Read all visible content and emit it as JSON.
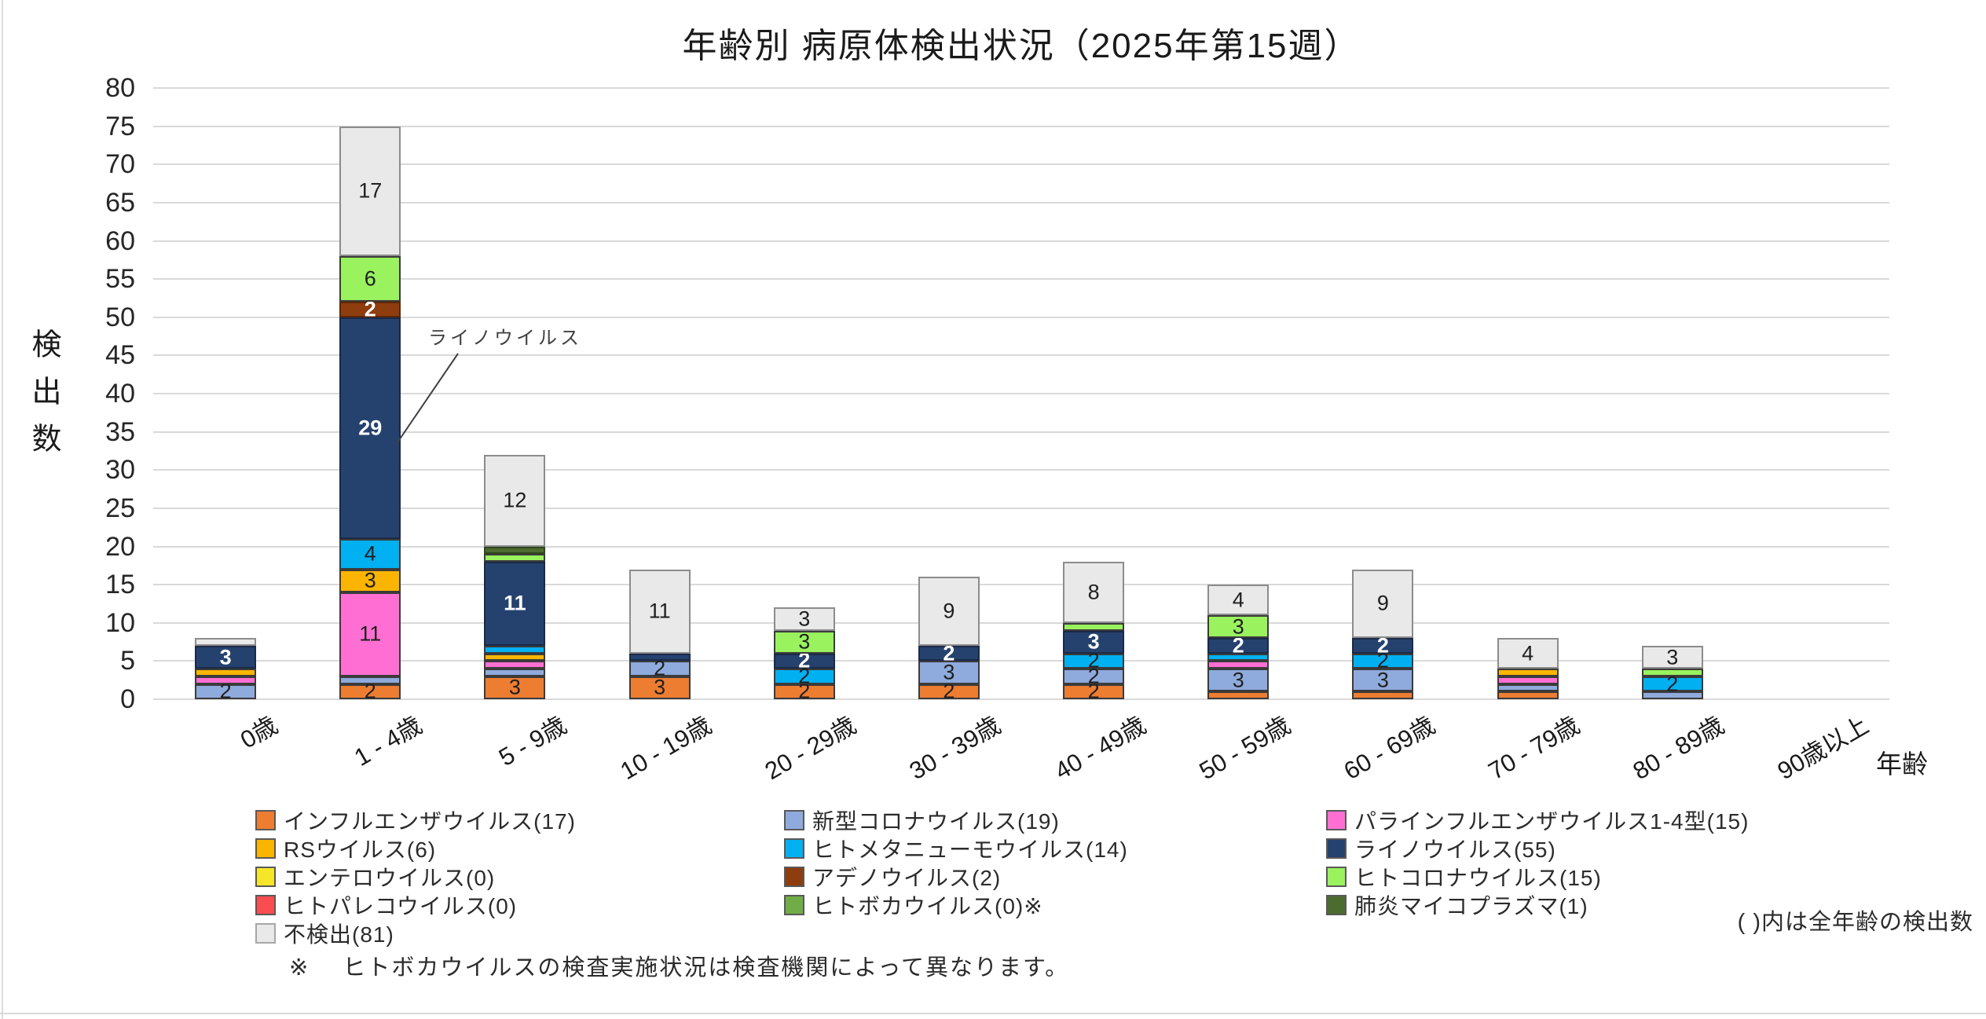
{
  "title": "年齢別 病原体検出状況（2025年第15週）",
  "y_axis_title": "検出数",
  "x_axis_title": "年齢",
  "annotation": {
    "text": "ライノウイルス",
    "target_series": "rhinovirus",
    "target_category": "1 - 4歳"
  },
  "note_right": "( )内は全年齢の検出数",
  "footnote": {
    "marker": "※",
    "text": "ヒトボカウイルスの検査実施状況は検査機関によって異なります。"
  },
  "chart_data": {
    "type": "bar",
    "stacked": true,
    "grid": "horizontal",
    "legend_position": "bottom",
    "ylim": [
      0,
      80
    ],
    "ytick_step": 5,
    "label_min_value": 2,
    "categories": [
      "0歳",
      "1 - 4歳",
      "5 - 9歳",
      "10 - 19歳",
      "20 - 29歳",
      "30 - 39歳",
      "40 - 49歳",
      "50 - 59歳",
      "60 - 69歳",
      "70 - 79歳",
      "80 - 89歳",
      "90歳以上"
    ],
    "series": [
      {
        "key": "influenza",
        "label": "インフルエンザウイルス(17)",
        "color": "#ED7D31",
        "border": "#3B3B3B",
        "label_color": "#1F1F1F",
        "label_bold": false,
        "values": [
          0,
          2,
          3,
          3,
          2,
          2,
          2,
          1,
          1,
          1,
          0,
          0
        ]
      },
      {
        "key": "covid19",
        "label": "新型コロナウイルス(19)",
        "color": "#8FAADC",
        "border": "#3B3B3B",
        "label_color": "#1F1F1F",
        "label_bold": false,
        "values": [
          2,
          1,
          1,
          2,
          0,
          3,
          2,
          3,
          3,
          1,
          1,
          0
        ]
      },
      {
        "key": "parainfluenza",
        "label": "パラインフルエンザウイルス1-4型(15)",
        "color": "#FF6FD3",
        "border": "#3B3B3B",
        "label_color": "#1F1F1F",
        "label_bold": false,
        "values": [
          1,
          11,
          1,
          0,
          0,
          0,
          0,
          1,
          0,
          1,
          0,
          0
        ]
      },
      {
        "key": "rsv",
        "label": "RSウイルス(6)",
        "color": "#FBB500",
        "border": "#3B3B3B",
        "label_color": "#1F1F1F",
        "label_bold": false,
        "values": [
          1,
          3,
          1,
          0,
          0,
          0,
          0,
          0,
          0,
          1,
          0,
          0
        ]
      },
      {
        "key": "enterovirus",
        "label": "エンテロウイルス(0)",
        "color": "#F5E62A",
        "border": "#3B3B3B",
        "label_color": "#1F1F1F",
        "label_bold": false,
        "values": [
          0,
          0,
          0,
          0,
          0,
          0,
          0,
          0,
          0,
          0,
          0,
          0
        ]
      },
      {
        "key": "hmpv",
        "label": "ヒトメタニューモウイルス(14)",
        "color": "#00B0F0",
        "border": "#3B3B3B",
        "label_color": "#1F1F1F",
        "label_bold": false,
        "values": [
          0,
          4,
          1,
          0,
          2,
          0,
          2,
          1,
          2,
          0,
          2,
          0
        ]
      },
      {
        "key": "rhinovirus",
        "label": "ライノウイルス(55)",
        "color": "#25426F",
        "border": "#1B2A47",
        "label_color": "#FFFFFF",
        "label_bold": true,
        "values": [
          3,
          29,
          11,
          1,
          2,
          2,
          3,
          2,
          2,
          0,
          0,
          0
        ]
      },
      {
        "key": "adenovirus",
        "label": "アデノウイルス(2)",
        "color": "#8E3D0E",
        "border": "#5E2708",
        "label_color": "#FFFFFF",
        "label_bold": true,
        "values": [
          0,
          2,
          0,
          0,
          0,
          0,
          0,
          0,
          0,
          0,
          0,
          0
        ]
      },
      {
        "key": "parechovirus",
        "label": "ヒトパレコウイルス(0)",
        "color": "#FA4D50",
        "border": "#3B3B3B",
        "label_color": "#1F1F1F",
        "label_bold": false,
        "values": [
          0,
          0,
          0,
          0,
          0,
          0,
          0,
          0,
          0,
          0,
          0,
          0
        ]
      },
      {
        "key": "bocavirus",
        "label": "ヒトボカウイルス(0)※",
        "color": "#70AD47",
        "border": "#3B3B3B",
        "label_color": "#1F1F1F",
        "label_bold": false,
        "values": [
          0,
          0,
          0,
          0,
          0,
          0,
          0,
          0,
          0,
          0,
          0,
          0
        ]
      },
      {
        "key": "hcov",
        "label": "ヒトコロナウイルス(15)",
        "color": "#99F25E",
        "border": "#3B3B3B",
        "label_color": "#1F1F1F",
        "label_bold": false,
        "values": [
          0,
          6,
          1,
          0,
          3,
          0,
          1,
          3,
          0,
          0,
          1,
          0
        ]
      },
      {
        "key": "mycoplasma",
        "label": "肺炎マイコプラズマ(1)",
        "color": "#4C6B2F",
        "border": "#31471D",
        "label_color": "#1F1F1F",
        "label_bold": false,
        "values": [
          0,
          0,
          1,
          0,
          0,
          0,
          0,
          0,
          0,
          0,
          0,
          0
        ]
      },
      {
        "key": "not_detected",
        "label": "不検出(81)",
        "color": "#E9E9E9",
        "border": "#8C8C8C",
        "label_color": "#1F1F1F",
        "label_bold": false,
        "values": [
          1,
          17,
          12,
          11,
          3,
          9,
          8,
          4,
          9,
          4,
          3,
          0
        ]
      }
    ],
    "legend_columns": [
      [
        "influenza",
        "rsv",
        "enterovirus",
        "parechovirus",
        "not_detected"
      ],
      [
        "covid19",
        "hmpv",
        "adenovirus",
        "bocavirus"
      ],
      [
        "parainfluenza",
        "rhinovirus",
        "hcov",
        "mycoplasma"
      ]
    ]
  }
}
